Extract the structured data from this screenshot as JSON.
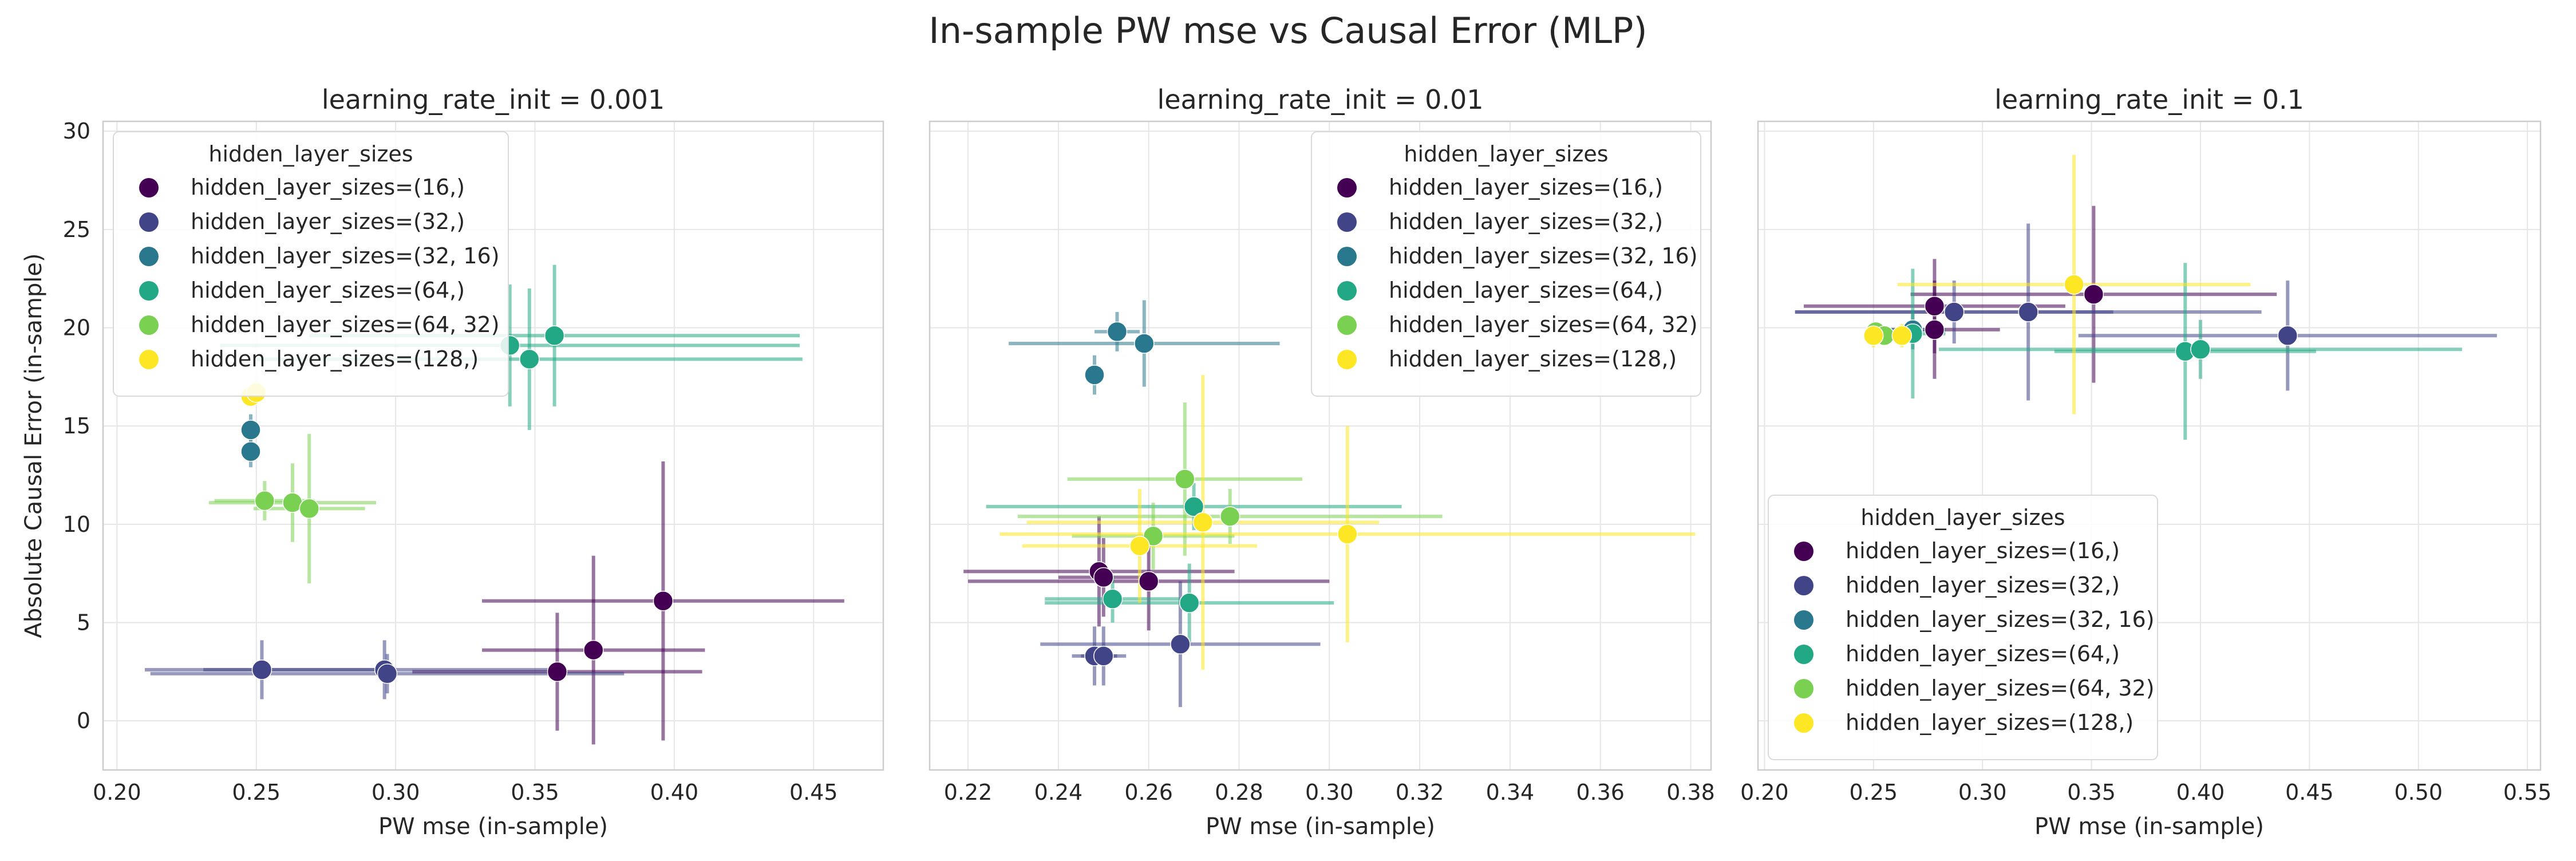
{
  "figure": {
    "title": "In-sample PW mse vs Causal Error (MLP)"
  },
  "palette": {
    "hidden_layer_sizes=(16,)": "#440154",
    "hidden_layer_sizes=(32,)": "#414487",
    "hidden_layer_sizes=(32, 16)": "#2a788e",
    "hidden_layer_sizes=(64,)": "#22a884",
    "hidden_layer_sizes=(64, 32)": "#7ad151",
    "hidden_layer_sizes=(128,)": "#fde725"
  },
  "chart_data": [
    {
      "type": "scatter",
      "title": "learning_rate_init = 0.001",
      "xlabel": "PW mse (in-sample)",
      "ylabel": "Absolute Causal Error (in-sample)",
      "xlim": [
        0.195,
        0.475
      ],
      "ylim": [
        -2.5,
        30.5
      ],
      "xticks": [
        "0.20",
        "0.25",
        "0.30",
        "0.35",
        "0.40",
        "0.45"
      ],
      "yticks": [
        "0",
        "5",
        "10",
        "15",
        "20",
        "25",
        "30"
      ],
      "grid": true,
      "legend": {
        "title": "hidden_layer_sizes",
        "position": "upper-left"
      },
      "series": [
        {
          "name": "hidden_layer_sizes=(16,)",
          "points": [
            {
              "x": 0.396,
              "y": 6.1,
              "xerr": 0.065,
              "yerr": 7.1
            },
            {
              "x": 0.371,
              "y": 3.6,
              "xerr": 0.04,
              "yerr": 4.8
            },
            {
              "x": 0.358,
              "y": 2.5,
              "xerr": 0.052,
              "yerr": 3.0
            }
          ]
        },
        {
          "name": "hidden_layer_sizes=(32,)",
          "points": [
            {
              "x": 0.252,
              "y": 2.6,
              "xerr": 0.042,
              "yerr": 1.5
            },
            {
              "x": 0.296,
              "y": 2.6,
              "xerr": 0.065,
              "yerr": 1.5
            },
            {
              "x": 0.297,
              "y": 2.4,
              "xerr": 0.085,
              "yerr": 1.0
            }
          ]
        },
        {
          "name": "hidden_layer_sizes=(32, 16)",
          "points": [
            {
              "x": 0.248,
              "y": 14.8,
              "xerr": 0.002,
              "yerr": 0.8
            },
            {
              "x": 0.248,
              "y": 13.7,
              "xerr": 0.002,
              "yerr": 0.8
            }
          ]
        },
        {
          "name": "hidden_layer_sizes=(64,)",
          "points": [
            {
              "x": 0.357,
              "y": 19.6,
              "xerr": 0.088,
              "yerr": 3.6
            },
            {
              "x": 0.341,
              "y": 19.1,
              "xerr": 0.104,
              "yerr": 3.1
            },
            {
              "x": 0.348,
              "y": 18.4,
              "xerr": 0.098,
              "yerr": 3.6
            }
          ]
        },
        {
          "name": "hidden_layer_sizes=(64, 32)",
          "points": [
            {
              "x": 0.253,
              "y": 11.2,
              "xerr": 0.018,
              "yerr": 1.0
            },
            {
              "x": 0.263,
              "y": 11.1,
              "xerr": 0.03,
              "yerr": 2.0
            },
            {
              "x": 0.269,
              "y": 10.8,
              "xerr": 0.02,
              "yerr": 3.8
            }
          ]
        },
        {
          "name": "hidden_layer_sizes=(128,)",
          "points": [
            {
              "x": 0.248,
              "y": 16.5,
              "xerr": 0.002,
              "yerr": 0.5
            },
            {
              "x": 0.25,
              "y": 16.7,
              "xerr": 0.003,
              "yerr": 0.6
            }
          ]
        }
      ]
    },
    {
      "type": "scatter",
      "title": "learning_rate_init = 0.01",
      "xlabel": "PW mse (in-sample)",
      "ylabel": "",
      "xlim": [
        0.2115,
        0.3845
      ],
      "ylim": [
        -2.5,
        30.5
      ],
      "xticks": [
        "0.22",
        "0.24",
        "0.26",
        "0.28",
        "0.30",
        "0.32",
        "0.34",
        "0.36",
        "0.38"
      ],
      "yticks": [],
      "grid": true,
      "legend": {
        "title": "hidden_layer_sizes",
        "position": "upper-right"
      },
      "series": [
        {
          "name": "hidden_layer_sizes=(16,)",
          "points": [
            {
              "x": 0.249,
              "y": 7.6,
              "xerr": 0.03,
              "yerr": 2.8
            },
            {
              "x": 0.25,
              "y": 7.3,
              "xerr": 0.01,
              "yerr": 2.0
            },
            {
              "x": 0.26,
              "y": 7.1,
              "xerr": 0.04,
              "yerr": 2.5
            }
          ]
        },
        {
          "name": "hidden_layer_sizes=(32,)",
          "points": [
            {
              "x": 0.248,
              "y": 3.3,
              "xerr": 0.005,
              "yerr": 1.5
            },
            {
              "x": 0.25,
              "y": 3.3,
              "xerr": 0.005,
              "yerr": 1.5
            },
            {
              "x": 0.267,
              "y": 3.9,
              "xerr": 0.031,
              "yerr": 3.2
            }
          ]
        },
        {
          "name": "hidden_layer_sizes=(32, 16)",
          "points": [
            {
              "x": 0.248,
              "y": 17.6,
              "xerr": 0.002,
              "yerr": 1.0
            },
            {
              "x": 0.253,
              "y": 19.8,
              "xerr": 0.005,
              "yerr": 1.0
            },
            {
              "x": 0.259,
              "y": 19.2,
              "xerr": 0.03,
              "yerr": 2.2
            }
          ]
        },
        {
          "name": "hidden_layer_sizes=(64,)",
          "points": [
            {
              "x": 0.27,
              "y": 10.9,
              "xerr": 0.046,
              "yerr": 1.2
            },
            {
              "x": 0.252,
              "y": 6.2,
              "xerr": 0.015,
              "yerr": 1.2
            },
            {
              "x": 0.269,
              "y": 6.0,
              "xerr": 0.032,
              "yerr": 2.0
            }
          ]
        },
        {
          "name": "hidden_layer_sizes=(64, 32)",
          "points": [
            {
              "x": 0.268,
              "y": 12.3,
              "xerr": 0.026,
              "yerr": 3.9
            },
            {
              "x": 0.278,
              "y": 10.4,
              "xerr": 0.047,
              "yerr": 1.4
            },
            {
              "x": 0.261,
              "y": 9.4,
              "xerr": 0.018,
              "yerr": 1.7
            }
          ]
        },
        {
          "name": "hidden_layer_sizes=(128,)",
          "points": [
            {
              "x": 0.304,
              "y": 9.5,
              "xerr": 0.077,
              "yerr": 5.5
            },
            {
              "x": 0.272,
              "y": 10.1,
              "xerr": 0.039,
              "yerr": 7.5
            },
            {
              "x": 0.258,
              "y": 8.9,
              "xerr": 0.026,
              "yerr": 2.9
            }
          ]
        }
      ]
    },
    {
      "type": "scatter",
      "title": "learning_rate_init = 0.1",
      "xlabel": "PW mse (in-sample)",
      "ylabel": "",
      "xlim": [
        0.197,
        0.556
      ],
      "ylim": [
        -2.5,
        30.5
      ],
      "xticks": [
        "0.20",
        "0.25",
        "0.30",
        "0.35",
        "0.40",
        "0.45",
        "0.50",
        "0.55"
      ],
      "yticks": [],
      "grid": true,
      "legend": {
        "title": "hidden_layer_sizes",
        "position": "lower-left"
      },
      "series": [
        {
          "name": "hidden_layer_sizes=(16,)",
          "points": [
            {
              "x": 0.351,
              "y": 21.7,
              "xerr": 0.084,
              "yerr": 4.5
            },
            {
              "x": 0.278,
              "y": 21.1,
              "xerr": 0.06,
              "yerr": 2.4
            },
            {
              "x": 0.278,
              "y": 19.9,
              "xerr": 0.03,
              "yerr": 2.5
            }
          ]
        },
        {
          "name": "hidden_layer_sizes=(32,)",
          "points": [
            {
              "x": 0.287,
              "y": 20.8,
              "xerr": 0.073,
              "yerr": 1.6
            },
            {
              "x": 0.321,
              "y": 20.8,
              "xerr": 0.107,
              "yerr": 4.5
            },
            {
              "x": 0.44,
              "y": 19.6,
              "xerr": 0.096,
              "yerr": 2.8
            }
          ]
        },
        {
          "name": "hidden_layer_sizes=(32, 16)",
          "points": [
            {
              "x": 0.268,
              "y": 19.9,
              "xerr": 0.015,
              "yerr": 1.0
            }
          ]
        },
        {
          "name": "hidden_layer_sizes=(64,)",
          "points": [
            {
              "x": 0.393,
              "y": 18.8,
              "xerr": 0.06,
              "yerr": 4.5
            },
            {
              "x": 0.4,
              "y": 18.9,
              "xerr": 0.12,
              "yerr": 1.5
            },
            {
              "x": 0.268,
              "y": 19.7,
              "xerr": 0.015,
              "yerr": 3.3
            }
          ]
        },
        {
          "name": "hidden_layer_sizes=(64, 32)",
          "points": [
            {
              "x": 0.251,
              "y": 19.8,
              "xerr": 0.004,
              "yerr": 0.5
            },
            {
              "x": 0.255,
              "y": 19.6,
              "xerr": 0.005,
              "yerr": 0.5
            }
          ]
        },
        {
          "name": "hidden_layer_sizes=(128,)",
          "points": [
            {
              "x": 0.342,
              "y": 22.2,
              "xerr": 0.081,
              "yerr": 6.6
            },
            {
              "x": 0.25,
              "y": 19.6,
              "xerr": 0.004,
              "yerr": 0.6
            },
            {
              "x": 0.263,
              "y": 19.6,
              "xerr": 0.005,
              "yerr": 0.6
            }
          ]
        }
      ]
    }
  ]
}
